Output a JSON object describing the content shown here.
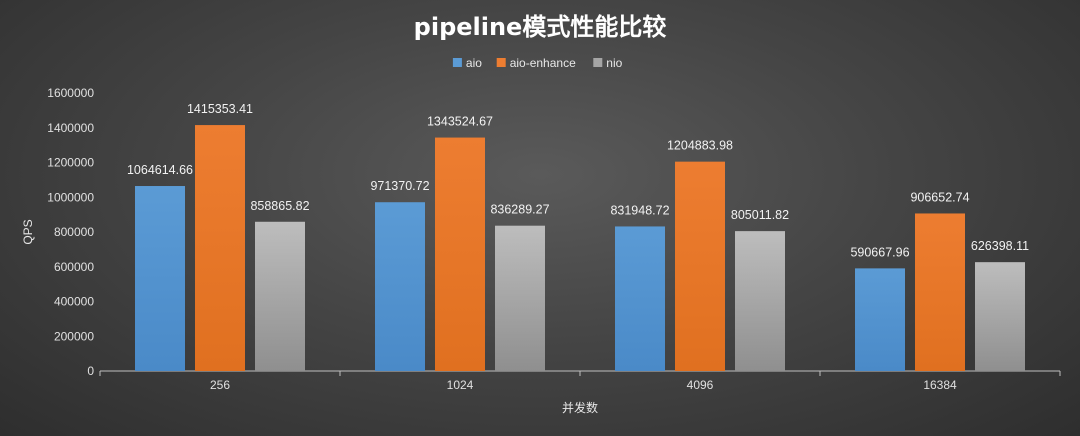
{
  "chart_data": {
    "type": "bar",
    "title": "pipeline模式性能比较",
    "xlabel": "并发数",
    "ylabel": "QPS",
    "categories": [
      "256",
      "1024",
      "4096",
      "16384"
    ],
    "series": [
      {
        "name": "aio",
        "color": "#5b9bd5",
        "values": [
          1064614.66,
          971370.72,
          831948.72,
          590667.96
        ]
      },
      {
        "name": "aio-enhance",
        "color": "#ed7d31",
        "values": [
          1415353.41,
          1343524.67,
          1204883.98,
          906652.74
        ]
      },
      {
        "name": "nio",
        "color": "#a5a5a5",
        "values": [
          858865.82,
          836289.27,
          805011.82,
          626398.11
        ]
      }
    ],
    "value_labels": [
      [
        "1064614.66",
        "971370.72",
        "831948.72",
        "590667.96"
      ],
      [
        "1415353.41",
        "1343524.67",
        "1204883.98",
        "906652.74"
      ],
      [
        "858865.82",
        "836289.27",
        "805011.82",
        "626398.11"
      ]
    ],
    "ylim": [
      0,
      1600000
    ],
    "yticks": [
      0,
      200000,
      400000,
      600000,
      800000,
      1000000,
      1200000,
      1400000,
      1600000
    ],
    "ytick_labels": [
      "0",
      "200000",
      "400000",
      "600000",
      "800000",
      "1000000",
      "1200000",
      "1400000",
      "1600000"
    ],
    "legend_position": "top-center",
    "grid": false
  }
}
